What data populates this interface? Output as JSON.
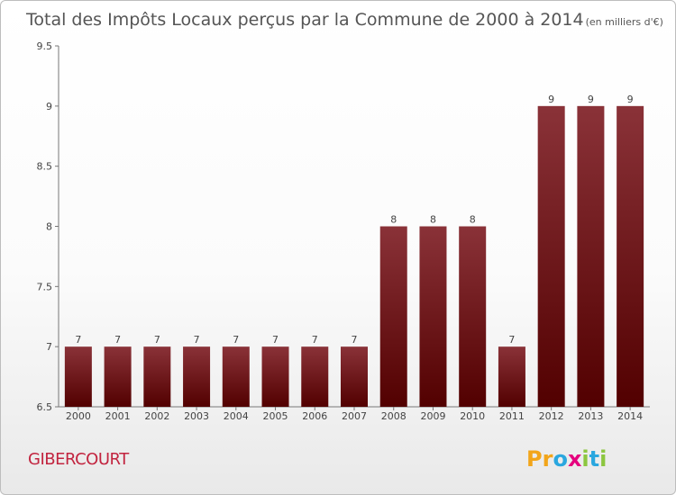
{
  "chart_data": {
    "type": "bar",
    "title": "Total des Impôts Locaux perçus par la Commune de 2000 à 2014",
    "subtitle": "(en milliers d'€)",
    "categories": [
      "2000",
      "2001",
      "2002",
      "2003",
      "2004",
      "2005",
      "2006",
      "2007",
      "2008",
      "2009",
      "2010",
      "2011",
      "2012",
      "2013",
      "2014"
    ],
    "values": [
      7,
      7,
      7,
      7,
      7,
      7,
      7,
      7,
      8,
      8,
      8,
      7,
      9,
      9,
      9
    ],
    "data_labels": [
      "7",
      "7",
      "7",
      "7",
      "7",
      "7",
      "7",
      "7",
      "8",
      "8",
      "8",
      "7",
      "9",
      "9",
      "9"
    ],
    "ylim": [
      6.5,
      9.5
    ],
    "yticks": [
      6.5,
      7,
      7.5,
      8,
      8.5,
      9,
      9.5
    ],
    "ytick_labels": [
      "6.5",
      "7",
      "7.5",
      "8",
      "8.5",
      "9",
      "9.5"
    ],
    "xlabel": "",
    "ylabel": "",
    "grid": false,
    "bar_color": "#7a1a22"
  },
  "footer": {
    "commune": "GIBERCOURT",
    "logo_letters": [
      "P",
      "r",
      "o",
      "x",
      "i",
      "t",
      "i"
    ],
    "logo_colors": [
      "#f2a51a",
      "#f2a51a",
      "#2aa7df",
      "#e5007e",
      "#8cc63f",
      "#2aa7df",
      "#8cc63f"
    ]
  }
}
